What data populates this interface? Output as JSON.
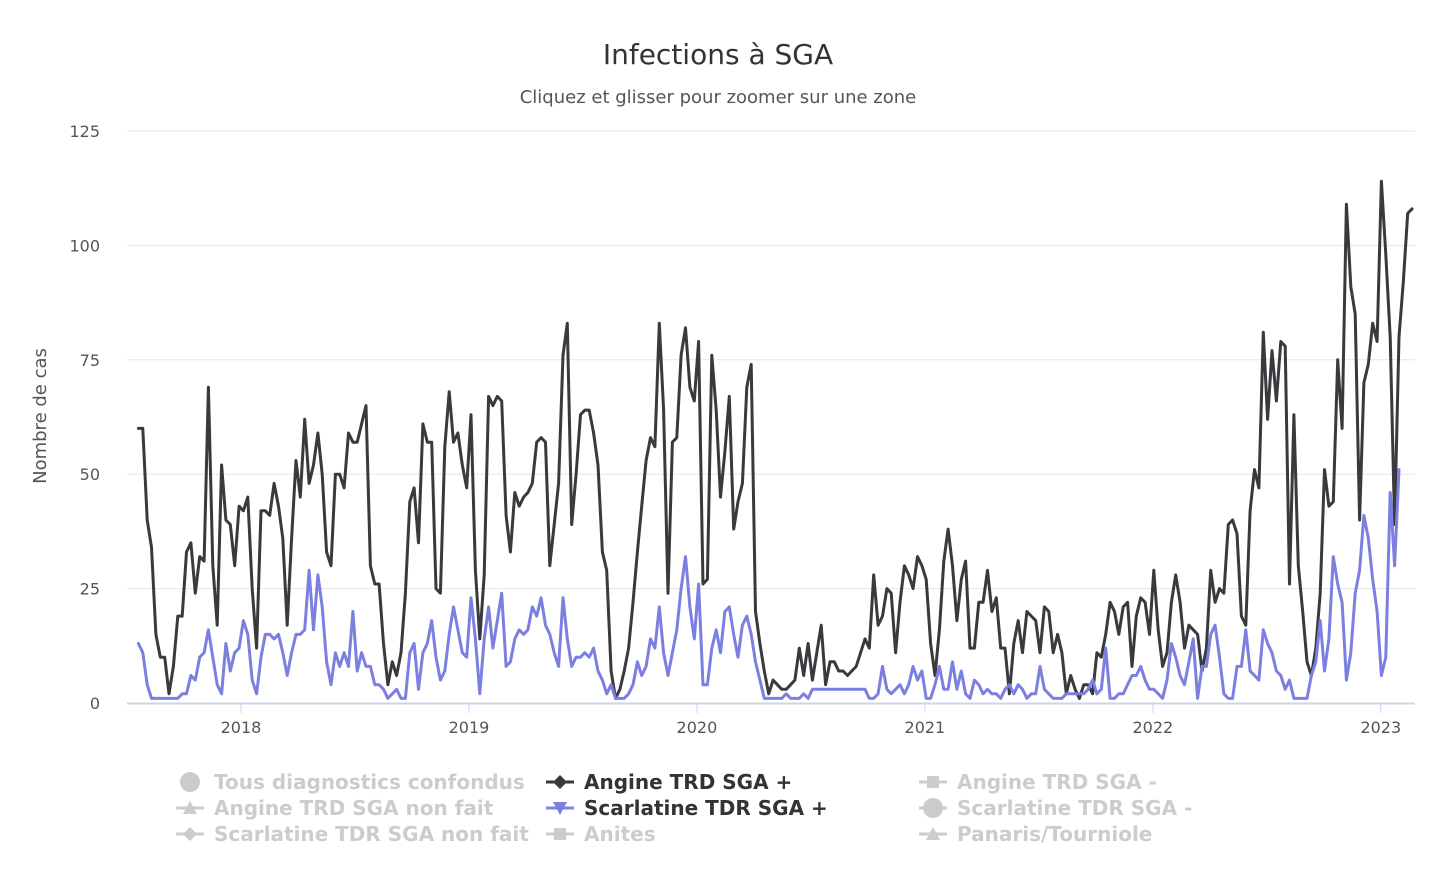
{
  "colors": {
    "series_dark": "#3a3a3e",
    "series_blue": "#7b80e0",
    "legend_inactive": "#cccccc",
    "legend_active": "#333333",
    "grid": "#e6e6e6",
    "axis": "#ccd6eb"
  },
  "chart_data": {
    "type": "line",
    "title": "Infections à SGA",
    "subtitle": "Cliquez et glisser pour zoomer sur une zone",
    "xlabel": "",
    "ylabel": "Nombre de cas",
    "ylim": [
      0,
      125
    ],
    "xlim": [
      2017.5,
      2023.15
    ],
    "yticks": [
      0,
      25,
      50,
      75,
      100,
      125
    ],
    "xticks": [
      {
        "value": 2018.0,
        "label": "2018"
      },
      {
        "value": 2019.0,
        "label": "2019"
      },
      {
        "value": 2020.0,
        "label": "2020"
      },
      {
        "value": 2021.0,
        "label": "2021"
      },
      {
        "value": 2022.0,
        "label": "2022"
      },
      {
        "value": 2023.0,
        "label": "2023"
      }
    ],
    "x_start": 2017.55,
    "x_step": 0.0192,
    "series": [
      {
        "name": "Angine TRD SGA +",
        "color": "#3a3a3e",
        "marker": "diamond",
        "values": [
          60,
          60,
          40,
          34,
          15,
          10,
          10,
          2,
          8,
          19,
          19,
          33,
          35,
          24,
          32,
          31,
          69,
          30,
          17,
          52,
          40,
          39,
          30,
          43,
          42,
          45,
          25,
          12,
          42,
          42,
          41,
          48,
          43,
          36,
          17,
          36,
          53,
          45,
          62,
          48,
          52,
          59,
          50,
          33,
          30,
          50,
          50,
          47,
          59,
          57,
          57,
          61,
          65,
          30,
          26,
          26,
          13,
          4,
          9,
          6,
          11,
          24,
          44,
          47,
          35,
          61,
          57,
          57,
          25,
          24,
          56,
          68,
          57,
          59,
          52,
          47,
          63,
          29,
          14,
          28,
          67,
          65,
          67,
          66,
          41,
          33,
          46,
          43,
          45,
          46,
          48,
          57,
          58,
          57,
          30,
          39,
          48,
          76,
          83,
          39,
          50,
          63,
          64,
          64,
          59,
          52,
          33,
          29,
          7,
          1,
          3,
          7,
          12,
          22,
          33,
          43,
          53,
          58,
          56,
          83,
          64,
          24,
          57,
          58,
          76,
          82,
          69,
          66,
          79,
          26,
          27,
          76,
          64,
          45,
          55,
          67,
          38,
          44,
          48,
          69,
          74,
          20,
          13,
          7,
          2,
          5,
          4,
          3,
          3,
          4,
          5,
          12,
          6,
          13,
          5,
          11,
          17,
          4,
          9,
          9,
          7,
          7,
          6,
          7,
          8,
          11,
          14,
          12,
          28,
          17,
          19,
          25,
          24,
          11,
          22,
          30,
          28,
          25,
          32,
          30,
          27,
          13,
          6,
          16,
          31,
          38,
          30,
          18,
          27,
          31,
          12,
          12,
          22,
          22,
          29,
          20,
          23,
          12,
          12,
          2,
          13,
          18,
          11,
          20,
          19,
          18,
          11,
          21,
          20,
          11,
          15,
          11,
          2,
          6,
          3,
          1,
          4,
          4,
          2,
          11,
          10,
          15,
          22,
          20,
          15,
          21,
          22,
          8,
          19,
          23,
          22,
          15,
          29,
          16,
          8,
          11,
          22,
          28,
          22,
          12,
          17,
          16,
          15,
          7,
          12,
          29,
          22,
          25,
          24,
          39,
          40,
          37,
          19,
          17,
          42,
          51,
          47,
          81,
          62,
          77,
          66,
          79,
          78,
          26,
          63,
          30,
          20,
          9,
          6,
          12,
          24,
          51,
          43,
          44,
          75,
          60,
          109,
          91,
          85,
          40,
          70,
          74,
          83,
          79,
          114,
          98,
          80,
          39,
          80,
          92,
          107,
          108
        ]
      },
      {
        "name": "Scarlatine TDR SGA +",
        "color": "#7b80e0",
        "marker": "triangle-down",
        "values": [
          13,
          11,
          4,
          1,
          1,
          1,
          1,
          1,
          1,
          1,
          2,
          2,
          6,
          5,
          10,
          11,
          16,
          10,
          4,
          2,
          13,
          7,
          11,
          12,
          18,
          15,
          5,
          2,
          10,
          15,
          15,
          14,
          15,
          11,
          6,
          11,
          15,
          15,
          16,
          29,
          16,
          28,
          21,
          9,
          4,
          11,
          8,
          11,
          8,
          20,
          7,
          11,
          8,
          8,
          4,
          4,
          3,
          1,
          2,
          3,
          1,
          1,
          11,
          13,
          3,
          11,
          13,
          18,
          10,
          5,
          7,
          15,
          21,
          16,
          11,
          10,
          23,
          14,
          2,
          14,
          21,
          12,
          18,
          24,
          8,
          9,
          14,
          16,
          15,
          16,
          21,
          19,
          23,
          17,
          15,
          11,
          8,
          23,
          14,
          8,
          10,
          10,
          11,
          10,
          12,
          7,
          5,
          2,
          4,
          1,
          1,
          1,
          2,
          4,
          9,
          6,
          8,
          14,
          12,
          21,
          11,
          6,
          11,
          16,
          25,
          32,
          21,
          14,
          26,
          4,
          4,
          12,
          16,
          11,
          20,
          21,
          15,
          10,
          17,
          19,
          15,
          9,
          5,
          1,
          1,
          1,
          1,
          1,
          2,
          1,
          1,
          1,
          2,
          1,
          3,
          3,
          3,
          3,
          3,
          3,
          3,
          3,
          3,
          3,
          3,
          3,
          3,
          1,
          1,
          2,
          8,
          3,
          2,
          3,
          4,
          2,
          4,
          8,
          5,
          7,
          1,
          1,
          4,
          8,
          3,
          3,
          9,
          3,
          7,
          2,
          1,
          5,
          4,
          2,
          3,
          2,
          2,
          1,
          3,
          4,
          2,
          4,
          3,
          1,
          2,
          2,
          8,
          3,
          2,
          1,
          1,
          1,
          2,
          2,
          2,
          2,
          2,
          3,
          5,
          2,
          3,
          12,
          1,
          1,
          2,
          2,
          4,
          6,
          6,
          8,
          5,
          3,
          3,
          2,
          1,
          5,
          13,
          10,
          6,
          4,
          9,
          14,
          1,
          8,
          8,
          15,
          17,
          10,
          2,
          1,
          1,
          8,
          8,
          16,
          7,
          6,
          5,
          16,
          13,
          11,
          7,
          6,
          3,
          5,
          1,
          1,
          1,
          1,
          6,
          9,
          18,
          7,
          14,
          32,
          26,
          22,
          5,
          11,
          24,
          29,
          41,
          36,
          27,
          20,
          6,
          10,
          46,
          30,
          51
        ]
      }
    ]
  },
  "legend": {
    "items": [
      {
        "label": "Tous diagnostics confondus",
        "marker": "circle",
        "active": false
      },
      {
        "label": "Angine TRD SGA +",
        "marker": "diamond",
        "active": true
      },
      {
        "label": "Angine TRD SGA -",
        "marker": "square",
        "active": false
      },
      {
        "label": "Angine TRD SGA non fait",
        "marker": "triangle",
        "active": false
      },
      {
        "label": "Scarlatine TDR SGA +",
        "marker": "triangle-down",
        "active": true
      },
      {
        "label": "Scarlatine TDR SGA -",
        "marker": "circle",
        "active": false
      },
      {
        "label": "Scarlatine TDR SGA non fait",
        "marker": "diamond",
        "active": false
      },
      {
        "label": "Anites",
        "marker": "square",
        "active": false
      },
      {
        "label": "Panaris/Tourniole",
        "marker": "triangle",
        "active": false
      }
    ]
  }
}
